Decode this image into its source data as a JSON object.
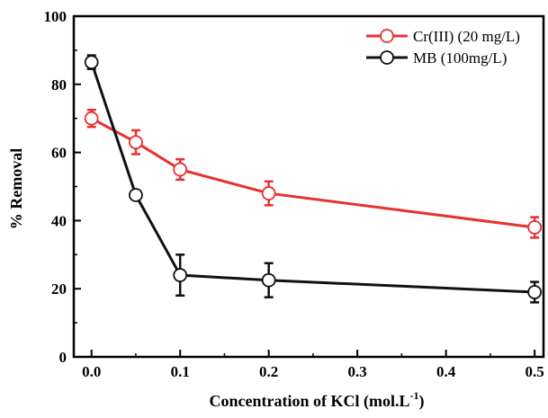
{
  "chart_data": {
    "type": "line",
    "title": "",
    "xlabel_main": "Concentration of KCl (mol.L",
    "xlabel_sup": "-1",
    "xlabel_tail": ")",
    "ylabel": "% Removal",
    "xlim": [
      -0.02,
      0.51
    ],
    "ylim": [
      0,
      100
    ],
    "x_ticks": [
      0.0,
      0.1,
      0.2,
      0.3,
      0.4,
      0.5
    ],
    "x_tick_labels": [
      "0.0",
      "0.1",
      "0.2",
      "0.3",
      "0.4",
      "0.5"
    ],
    "y_ticks": [
      0,
      20,
      40,
      60,
      80,
      100
    ],
    "y_tick_labels": [
      "0",
      "20",
      "40",
      "60",
      "80",
      "100"
    ],
    "grid": false,
    "legend_position": "top-right",
    "series": [
      {
        "name": "Cr(III) (20 mg/L)",
        "color": "#e8312f",
        "x": [
          0.0,
          0.05,
          0.1,
          0.2,
          0.5
        ],
        "y": [
          70,
          63,
          55,
          48,
          38
        ],
        "err": [
          2.5,
          3.5,
          3.0,
          3.5,
          3.0
        ]
      },
      {
        "name": "MB (100mg/L)",
        "color": "#111111",
        "x": [
          0.0,
          0.05,
          0.1,
          0.2,
          0.5
        ],
        "y": [
          86.5,
          47.5,
          24,
          22.5,
          19
        ],
        "err": [
          2.0,
          1.0,
          6.0,
          5.0,
          3.0
        ]
      }
    ]
  }
}
